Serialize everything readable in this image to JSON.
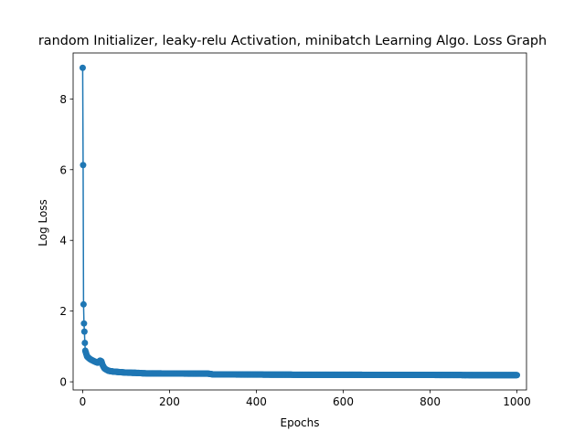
{
  "chart_data": {
    "type": "line",
    "title": "random Initializer, leaky-relu Activation, minibatch Learning Algo. Loss Graph",
    "xlabel": "Epochs",
    "ylabel": "Log Loss",
    "xlim": [
      -22,
      1022
    ],
    "ylim": [
      -0.23,
      9.3
    ],
    "xticks": [
      0,
      200,
      400,
      600,
      800,
      1000
    ],
    "yticks": [
      0,
      2,
      4,
      6,
      8
    ],
    "grid": false,
    "legend": "none",
    "marker": "circle",
    "color": "#1f77b4",
    "key_points": [
      [
        0,
        8.88
      ],
      [
        1,
        6.13
      ],
      [
        2,
        2.19
      ],
      [
        3,
        1.65
      ],
      [
        4,
        1.42
      ],
      [
        5,
        1.1
      ],
      [
        6,
        0.88
      ],
      [
        8,
        0.8
      ],
      [
        10,
        0.72
      ],
      [
        15,
        0.66
      ],
      [
        20,
        0.62
      ],
      [
        25,
        0.59
      ],
      [
        30,
        0.56
      ],
      [
        35,
        0.54
      ],
      [
        40,
        0.6
      ],
      [
        43,
        0.58
      ],
      [
        46,
        0.47
      ],
      [
        50,
        0.38
      ],
      [
        55,
        0.34
      ],
      [
        60,
        0.31
      ],
      [
        70,
        0.29
      ],
      [
        80,
        0.28
      ],
      [
        100,
        0.26
      ],
      [
        130,
        0.25
      ],
      [
        140,
        0.24
      ],
      [
        200,
        0.235
      ],
      [
        290,
        0.23
      ],
      [
        300,
        0.21
      ],
      [
        400,
        0.205
      ],
      [
        500,
        0.2
      ],
      [
        600,
        0.2
      ],
      [
        700,
        0.195
      ],
      [
        800,
        0.195
      ],
      [
        900,
        0.19
      ],
      [
        1000,
        0.19
      ]
    ]
  }
}
